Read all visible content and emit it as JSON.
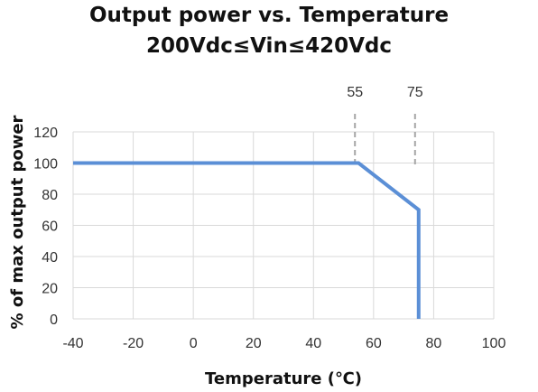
{
  "chart_data": {
    "type": "line",
    "title": "Output power vs. Temperature",
    "subtitle": "200Vdc≤Vin≤420Vdc",
    "xlabel": "Temperature (℃)",
    "ylabel": "% of max output power",
    "xlim": [
      -40,
      100
    ],
    "ylim": [
      0,
      120
    ],
    "x_ticks": [
      -40,
      -20,
      0,
      20,
      40,
      60,
      80,
      100
    ],
    "y_ticks": [
      0,
      20,
      40,
      60,
      80,
      100,
      120
    ],
    "grid": true,
    "series": [
      {
        "color": "#5b8fd6",
        "x": [
          -40,
          55,
          75,
          75
        ],
        "y": [
          100,
          100,
          70,
          0
        ]
      }
    ],
    "reference_lines": [
      {
        "x": 55,
        "label": "55",
        "style": "dashed",
        "color": "#a6a6a6"
      },
      {
        "x": 75,
        "label": "75",
        "style": "dashed",
        "color": "#a6a6a6"
      }
    ]
  }
}
